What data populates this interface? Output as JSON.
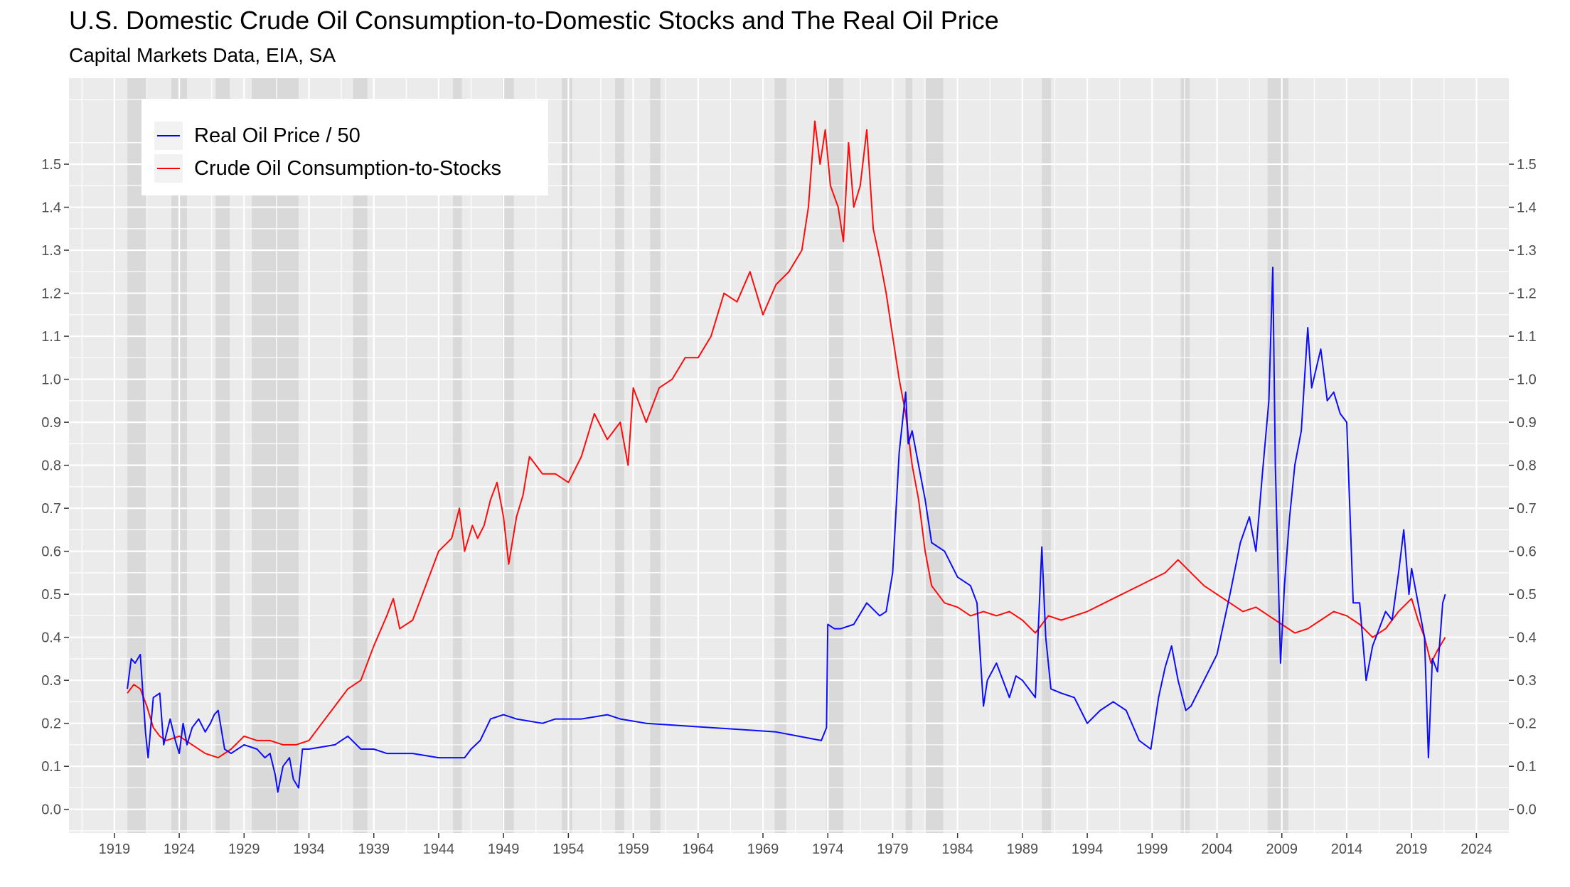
{
  "title": "U.S. Domestic Crude Oil Consumption-to-Domestic Stocks and The Real Oil Price",
  "subtitle": "Capital Markets Data, EIA, SA",
  "chart_data": {
    "type": "line",
    "title": "U.S. Domestic Crude Oil Consumption-to-Domestic Stocks and The Real Oil Price",
    "subtitle": "Capital Markets Data, EIA, SA",
    "xlabel": "",
    "ylabel": "",
    "xlim": [
      1915.5,
      2026.5
    ],
    "ylim": [
      -0.055,
      1.7
    ],
    "x_ticks": [
      1919,
      1924,
      1929,
      1934,
      1939,
      1944,
      1949,
      1954,
      1959,
      1964,
      1969,
      1974,
      1979,
      1984,
      1989,
      1994,
      1999,
      2004,
      2009,
      2014,
      2019,
      2024
    ],
    "y_ticks": [
      0.0,
      0.1,
      0.2,
      0.3,
      0.4,
      0.5,
      0.6,
      0.7,
      0.8,
      0.9,
      1.0,
      1.1,
      1.2,
      1.3,
      1.4,
      1.5
    ],
    "y_tick_labels": [
      "0.0",
      "0.1",
      "0.2",
      "0.3",
      "0.4",
      "0.5",
      "0.6",
      "0.7",
      "0.8",
      "0.9",
      "1.0",
      "1.1",
      "1.2",
      "1.3",
      "1.4",
      "1.5"
    ],
    "secondary_y_axis": true,
    "grid": true,
    "legend_position": "top-left",
    "recession_shading": [
      [
        1920.0,
        1921.5
      ],
      [
        1923.4,
        1924.6
      ],
      [
        1926.8,
        1927.9
      ],
      [
        1929.6,
        1933.2
      ],
      [
        1937.4,
        1938.5
      ],
      [
        1945.1,
        1945.8
      ],
      [
        1948.9,
        1949.8
      ],
      [
        1953.5,
        1954.3
      ],
      [
        1957.6,
        1958.3
      ],
      [
        1960.3,
        1961.1
      ],
      [
        1969.9,
        1970.8
      ],
      [
        1973.9,
        1975.2
      ],
      [
        1980.0,
        1980.5
      ],
      [
        1981.5,
        1982.9
      ],
      [
        1990.5,
        1991.2
      ],
      [
        2001.2,
        2001.9
      ],
      [
        2007.9,
        2009.5
      ]
    ],
    "series": [
      {
        "name": "Real Oil Price / 50",
        "color": "#0000ff",
        "x": [
          1920.0,
          1920.3,
          1920.6,
          1921.0,
          1921.4,
          1921.6,
          1922.0,
          1922.5,
          1922.8,
          1923.3,
          1923.7,
          1924.0,
          1924.3,
          1924.6,
          1925.0,
          1925.5,
          1926.0,
          1926.4,
          1926.7,
          1927.0,
          1927.5,
          1928.0,
          1929.0,
          1930.0,
          1930.6,
          1931.0,
          1931.4,
          1931.6,
          1932.0,
          1932.5,
          1932.8,
          1933.2,
          1933.5,
          1934.0,
          1936.0,
          1937.0,
          1938.0,
          1939.0,
          1940.0,
          1942.0,
          1944.0,
          1946.0,
          1946.5,
          1947.2,
          1948.0,
          1949.0,
          1950.0,
          1952.0,
          1953.0,
          1955.0,
          1957.0,
          1958.0,
          1960.0,
          1965.0,
          1970.0,
          1973.5,
          1973.9,
          1974.0,
          1974.5,
          1975.0,
          1976.0,
          1977.0,
          1978.0,
          1978.5,
          1979.0,
          1979.5,
          1980.0,
          1980.2,
          1980.5,
          1981.0,
          1981.5,
          1982.0,
          1983.0,
          1984.0,
          1985.0,
          1985.5,
          1986.0,
          1986.3,
          1987.0,
          1988.0,
          1988.5,
          1989.0,
          1990.0,
          1990.5,
          1990.8,
          1991.2,
          1992.0,
          1993.0,
          1994.0,
          1995.0,
          1996.0,
          1997.0,
          1998.0,
          1998.9,
          1999.5,
          2000.0,
          2000.5,
          2001.0,
          2001.6,
          2002.0,
          2003.0,
          2004.0,
          2005.0,
          2005.8,
          2006.5,
          2007.0,
          2007.5,
          2008.0,
          2008.3,
          2008.5,
          2008.9,
          2009.2,
          2009.6,
          2010.0,
          2010.5,
          2011.0,
          2011.3,
          2012.0,
          2012.5,
          2013.0,
          2013.5,
          2014.0,
          2014.5,
          2015.0,
          2015.5,
          2016.0,
          2016.5,
          2017.0,
          2017.5,
          2018.0,
          2018.4,
          2018.8,
          2019.0,
          2019.5,
          2020.0,
          2020.3,
          2020.6,
          2021.0,
          2021.4,
          2021.6
        ],
        "values": [
          0.28,
          0.35,
          0.34,
          0.36,
          0.18,
          0.12,
          0.26,
          0.27,
          0.15,
          0.21,
          0.16,
          0.13,
          0.2,
          0.15,
          0.19,
          0.21,
          0.18,
          0.2,
          0.22,
          0.23,
          0.14,
          0.13,
          0.15,
          0.14,
          0.12,
          0.13,
          0.08,
          0.04,
          0.1,
          0.12,
          0.07,
          0.05,
          0.14,
          0.14,
          0.15,
          0.17,
          0.14,
          0.14,
          0.13,
          0.13,
          0.12,
          0.12,
          0.14,
          0.16,
          0.21,
          0.22,
          0.21,
          0.2,
          0.21,
          0.21,
          0.22,
          0.21,
          0.2,
          0.19,
          0.18,
          0.16,
          0.19,
          0.43,
          0.42,
          0.42,
          0.43,
          0.48,
          0.45,
          0.46,
          0.55,
          0.83,
          0.97,
          0.85,
          0.88,
          0.8,
          0.72,
          0.62,
          0.6,
          0.54,
          0.52,
          0.48,
          0.24,
          0.3,
          0.34,
          0.26,
          0.31,
          0.3,
          0.26,
          0.61,
          0.4,
          0.28,
          0.27,
          0.26,
          0.2,
          0.23,
          0.25,
          0.23,
          0.16,
          0.14,
          0.26,
          0.33,
          0.38,
          0.3,
          0.23,
          0.24,
          0.3,
          0.36,
          0.5,
          0.62,
          0.68,
          0.6,
          0.78,
          0.95,
          1.26,
          0.8,
          0.34,
          0.52,
          0.68,
          0.8,
          0.88,
          1.12,
          0.98,
          1.07,
          0.95,
          0.97,
          0.92,
          0.9,
          0.48,
          0.48,
          0.3,
          0.38,
          0.42,
          0.46,
          0.44,
          0.55,
          0.65,
          0.5,
          0.56,
          0.48,
          0.4,
          0.12,
          0.35,
          0.32,
          0.48,
          0.5
        ]
      },
      {
        "name": "Crude Oil Consumption-to-Stocks",
        "color": "#ff0000",
        "x": [
          1920.0,
          1920.5,
          1921.0,
          1921.5,
          1922.0,
          1922.5,
          1923.0,
          1924.0,
          1925.0,
          1926.0,
          1927.0,
          1928.0,
          1929.0,
          1930.0,
          1931.0,
          1932.0,
          1933.0,
          1934.0,
          1935.0,
          1936.0,
          1937.0,
          1938.0,
          1939.0,
          1940.0,
          1940.5,
          1941.0,
          1942.0,
          1943.0,
          1944.0,
          1945.0,
          1945.6,
          1946.0,
          1946.6,
          1947.0,
          1947.5,
          1948.0,
          1948.5,
          1949.0,
          1949.4,
          1950.0,
          1950.5,
          1951.0,
          1952.0,
          1953.0,
          1954.0,
          1955.0,
          1956.0,
          1957.0,
          1958.0,
          1958.6,
          1959.0,
          1960.0,
          1961.0,
          1962.0,
          1963.0,
          1964.0,
          1965.0,
          1966.0,
          1967.0,
          1968.0,
          1969.0,
          1970.0,
          1971.0,
          1972.0,
          1972.5,
          1973.0,
          1973.4,
          1973.8,
          1974.2,
          1974.8,
          1975.2,
          1975.6,
          1976.0,
          1976.5,
          1977.0,
          1977.5,
          1978.0,
          1978.5,
          1979.0,
          1979.5,
          1980.0,
          1980.5,
          1981.0,
          1981.5,
          1982.0,
          1983.0,
          1984.0,
          1985.0,
          1986.0,
          1987.0,
          1988.0,
          1989.0,
          1990.0,
          1991.0,
          1992.0,
          1994.0,
          1996.0,
          1998.0,
          2000.0,
          2001.0,
          2002.0,
          2003.0,
          2004.0,
          2005.0,
          2006.0,
          2007.0,
          2008.0,
          2009.0,
          2010.0,
          2011.0,
          2012.0,
          2013.0,
          2014.0,
          2015.0,
          2016.0,
          2017.0,
          2018.0,
          2019.0,
          2019.5,
          2020.0,
          2020.5,
          2021.0,
          2021.6
        ],
        "values": [
          0.27,
          0.29,
          0.28,
          0.24,
          0.19,
          0.17,
          0.16,
          0.17,
          0.15,
          0.13,
          0.12,
          0.14,
          0.17,
          0.16,
          0.16,
          0.15,
          0.15,
          0.16,
          0.2,
          0.24,
          0.28,
          0.3,
          0.38,
          0.45,
          0.49,
          0.42,
          0.44,
          0.52,
          0.6,
          0.63,
          0.7,
          0.6,
          0.66,
          0.63,
          0.66,
          0.72,
          0.76,
          0.68,
          0.57,
          0.68,
          0.73,
          0.82,
          0.78,
          0.78,
          0.76,
          0.82,
          0.92,
          0.86,
          0.9,
          0.8,
          0.98,
          0.9,
          0.98,
          1.0,
          1.05,
          1.05,
          1.1,
          1.2,
          1.18,
          1.25,
          1.15,
          1.22,
          1.25,
          1.3,
          1.4,
          1.6,
          1.5,
          1.58,
          1.45,
          1.4,
          1.32,
          1.55,
          1.4,
          1.45,
          1.58,
          1.35,
          1.28,
          1.2,
          1.1,
          1.0,
          0.92,
          0.8,
          0.72,
          0.6,
          0.52,
          0.48,
          0.47,
          0.45,
          0.46,
          0.45,
          0.46,
          0.44,
          0.41,
          0.45,
          0.44,
          0.46,
          0.49,
          0.52,
          0.55,
          0.58,
          0.55,
          0.52,
          0.5,
          0.48,
          0.46,
          0.47,
          0.45,
          0.43,
          0.41,
          0.42,
          0.44,
          0.46,
          0.45,
          0.43,
          0.4,
          0.42,
          0.46,
          0.49,
          0.44,
          0.4,
          0.34,
          0.37,
          0.4
        ]
      }
    ]
  }
}
